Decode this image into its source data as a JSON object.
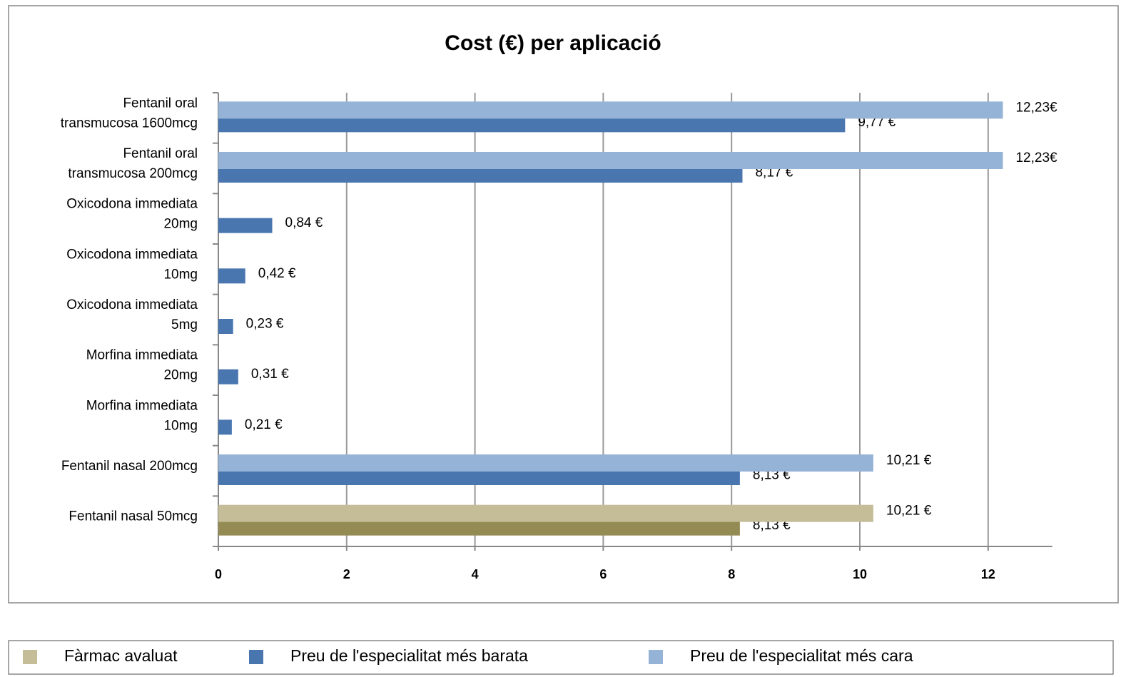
{
  "chart_data": {
    "type": "barh",
    "title": "Cost (€)  per aplicació",
    "categories": [
      "Fentanil oral\ntransmucosa 1600mcg",
      "Fentanil oral\ntransmucosa 200mcg",
      "Oxicodona immediata\n20mg",
      "Oxicodona immediata\n10mg",
      "Oxicodona immediata\n5mg",
      "Morfina immediata\n20mg",
      "Morfina immediata\n10mg",
      "Fentanil nasal 200mcg",
      "Fentanil nasal 50mcg"
    ],
    "highlight": {
      "name": "Fàrmac avaluat",
      "color": "#c4bd97"
    },
    "series": [
      {
        "name": "Preu de  l'especialitat més barata",
        "color": "#4a76b0",
        "colors": [
          "#4a76b0",
          "#4a76b0",
          "#4a76b0",
          "#4a76b0",
          "#4a76b0",
          "#4a76b0",
          "#4a76b0",
          "#4a76b0",
          "#948a54"
        ],
        "values": [
          9.77,
          8.17,
          0.84,
          0.42,
          0.23,
          0.31,
          0.21,
          8.13,
          8.13
        ],
        "value_labels": [
          "9,77 €",
          "8,17 €",
          "0,84 €",
          "0,42 €",
          "0,23 €",
          "0,31 €",
          "0,21 €",
          "8,13 €",
          "8,13 €"
        ]
      },
      {
        "name": "Preu de l'especialitat més cara",
        "color": "#95b3d7",
        "colors": [
          "#95b3d7",
          "#95b3d7",
          null,
          null,
          null,
          null,
          null,
          "#95b3d7",
          "#c4bd97"
        ],
        "values": [
          12.23,
          12.23,
          null,
          null,
          null,
          null,
          null,
          10.21,
          10.21
        ],
        "value_labels": [
          "12,23€",
          "12,23€",
          null,
          null,
          null,
          null,
          null,
          "10,21 €",
          "10,21 €"
        ]
      }
    ],
    "xlim": [
      0,
      13
    ],
    "xticks": [
      0,
      2,
      4,
      6,
      8,
      10,
      12
    ],
    "grid": true
  }
}
